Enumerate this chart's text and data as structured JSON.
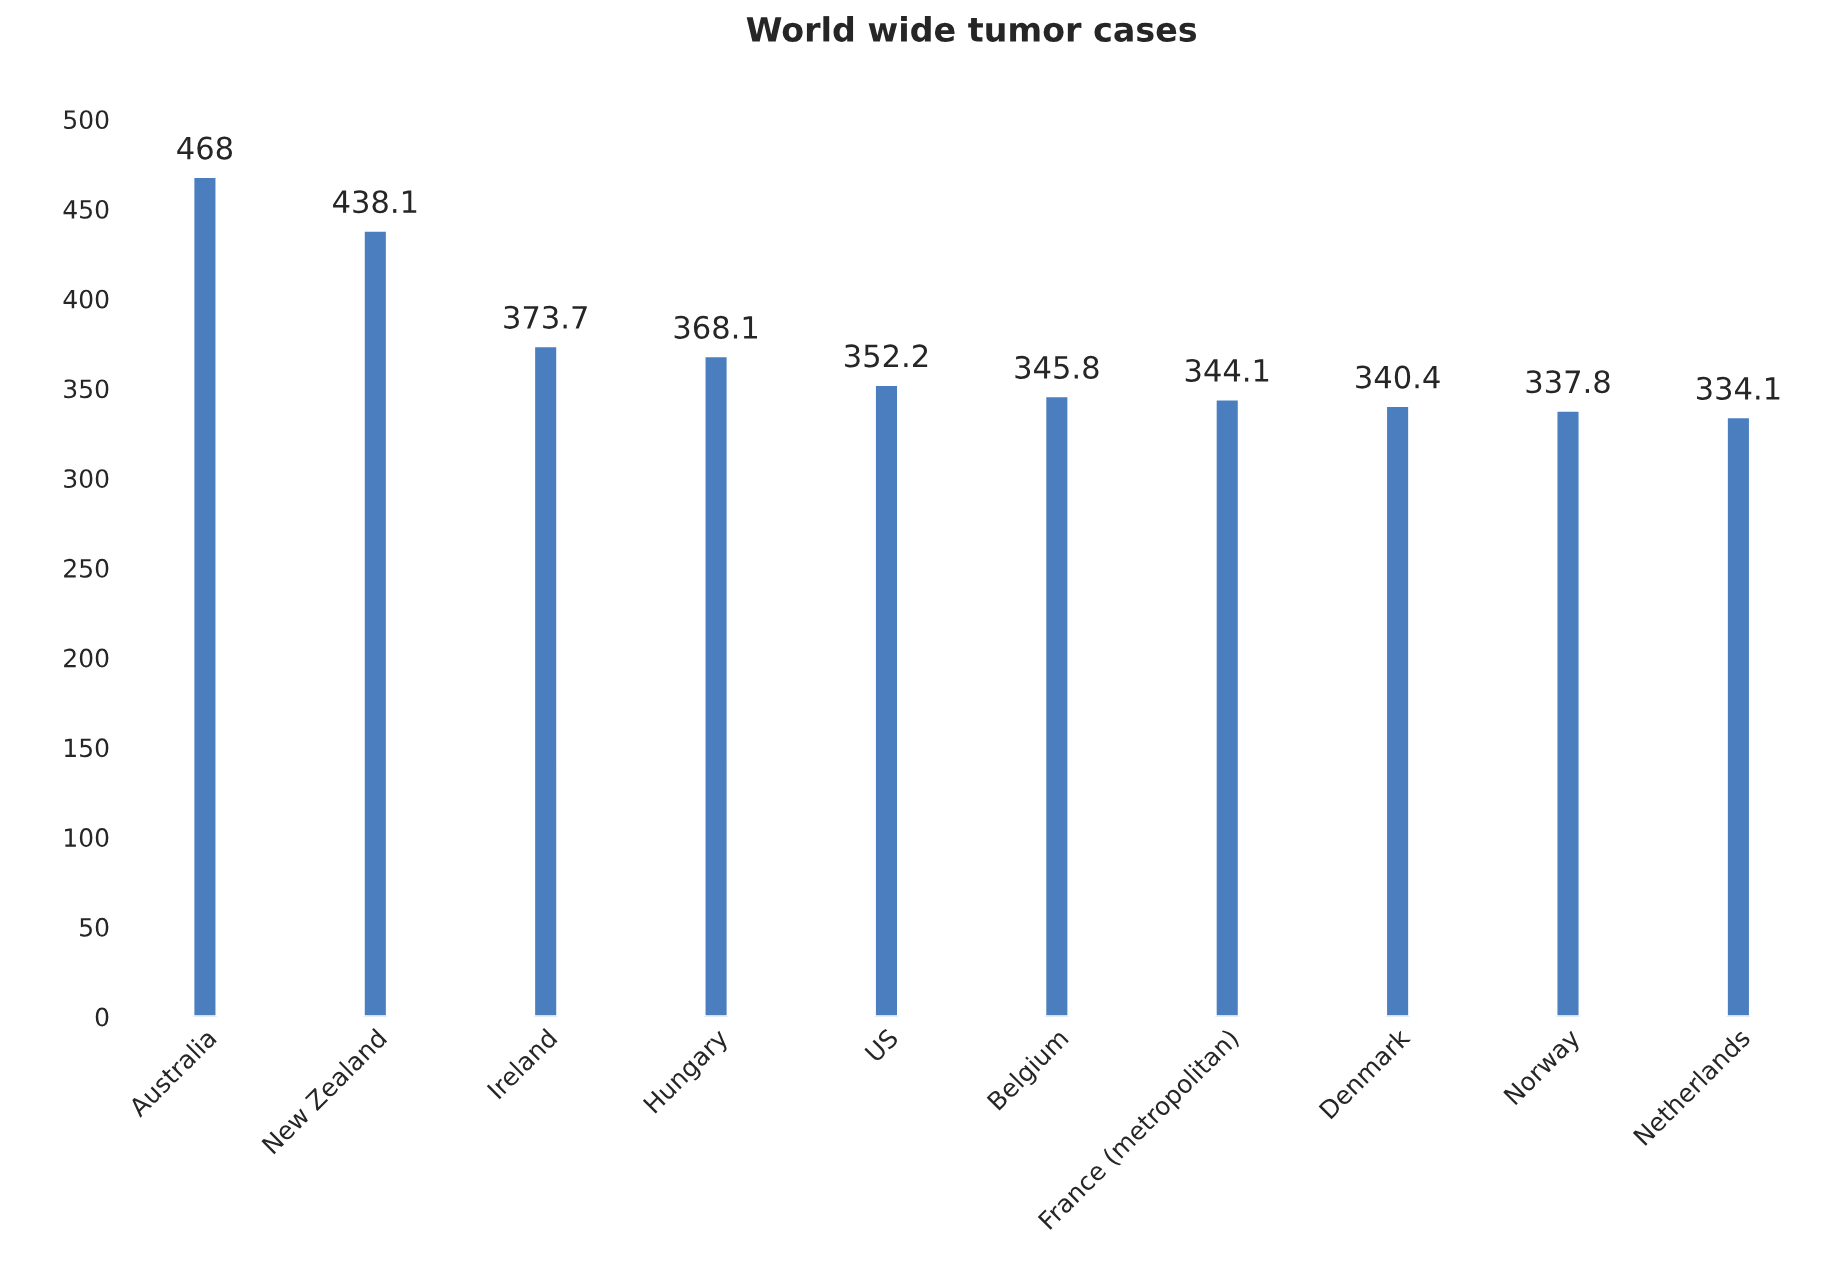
{
  "chart_data": {
    "type": "bar",
    "title": "World wide tumor cases",
    "categories": [
      "Australia",
      "New Zealand",
      "Ireland",
      "Hungary",
      "US",
      "Belgium",
      "France (metropolitan)",
      "Denmark",
      "Norway",
      "Netherlands"
    ],
    "values": [
      468,
      438.1,
      373.7,
      368.1,
      352.2,
      345.8,
      344.1,
      340.4,
      337.8,
      334.1
    ],
    "color": "#4a7ebf",
    "ylim": [
      0,
      500
    ],
    "yticks": [
      0,
      50,
      100,
      150,
      200,
      250,
      300,
      350,
      400,
      450,
      500
    ],
    "grid": false,
    "data_labels": true
  }
}
